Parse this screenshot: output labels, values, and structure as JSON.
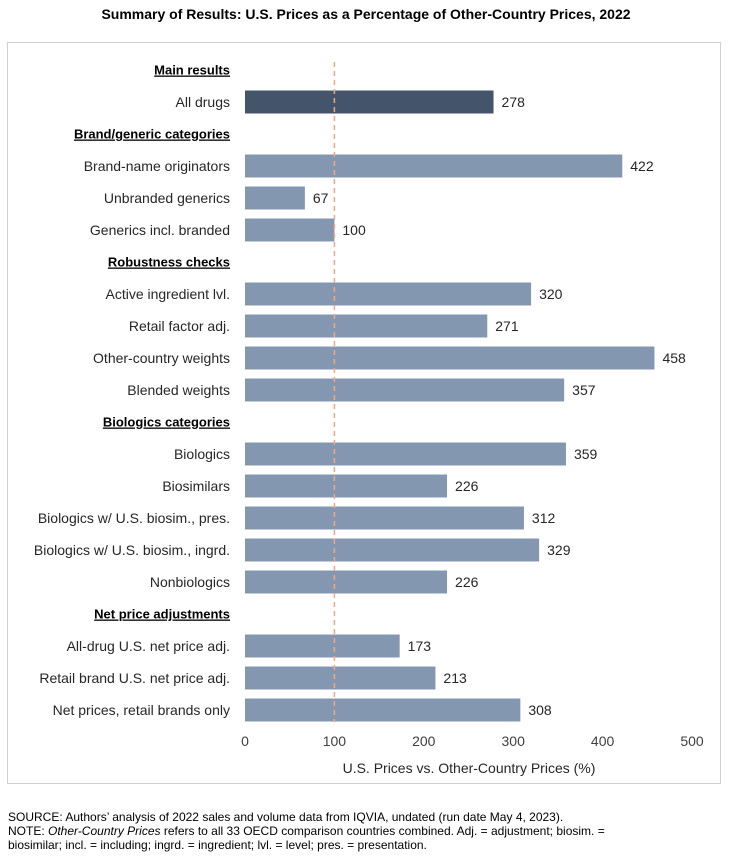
{
  "title": "Summary of Results: U.S. Prices as a Percentage of Other-Country Prices, 2022",
  "chart_data": {
    "type": "bar",
    "orientation": "horizontal",
    "title": "Summary of Results: U.S. Prices as a Percentage of Other-Country Prices, 2022",
    "xlabel": "U.S. Prices vs. Other-Country Prices (%)",
    "ylabel": "",
    "xlim": [
      0,
      500
    ],
    "xticks": [
      0,
      100,
      200,
      300,
      400,
      500
    ],
    "reference_line": {
      "value": 100,
      "style": "dashed",
      "color": "#F4A582"
    },
    "colors": {
      "highlight": "#44546A",
      "default": "#8497B0"
    },
    "groups": [
      {
        "header": "Main results",
        "items": [
          {
            "label": "All drugs",
            "value": 278,
            "highlight": true
          }
        ]
      },
      {
        "header": "Brand/generic categories",
        "items": [
          {
            "label": "Brand-name originators",
            "value": 422
          },
          {
            "label": "Unbranded generics",
            "value": 67
          },
          {
            "label": "Generics incl. branded",
            "value": 100
          }
        ]
      },
      {
        "header": "Robustness checks",
        "items": [
          {
            "label": "Active ingredient lvl.",
            "value": 320
          },
          {
            "label": "Retail factor adj.",
            "value": 271
          },
          {
            "label": "Other-country weights",
            "value": 458
          },
          {
            "label": "Blended weights",
            "value": 357
          }
        ]
      },
      {
        "header": "Biologics categories",
        "items": [
          {
            "label": "Biologics",
            "value": 359
          },
          {
            "label": "Biosimilars",
            "value": 226
          },
          {
            "label": "Biologics w/ U.S. biosim., pres.",
            "value": 312
          },
          {
            "label": "Biologics w/ U.S. biosim., ingrd.",
            "value": 329
          },
          {
            "label": "Nonbiologics",
            "value": 226
          }
        ]
      },
      {
        "header": "Net price adjustments",
        "items": [
          {
            "label": "All-drug U.S. net price adj.",
            "value": 173
          },
          {
            "label": "Retail brand U.S. net price adj.",
            "value": 213
          },
          {
            "label": "Net prices, retail brands only",
            "value": 308
          }
        ]
      }
    ]
  },
  "footer": {
    "source": "SOURCE: Authors’ analysis of 2022 sales and volume data from IQVIA, undated (run date May 4, 2023).",
    "note_prefix": "NOTE: ",
    "note_term": "Other-Country Prices",
    "note_rest": " refers to all 33 OECD comparison countries combined. Adj. = adjustment; biosim. =",
    "note_line2": "biosimilar; incl. = including; ingrd. = ingredient; lvl. = level; pres. = presentation."
  }
}
